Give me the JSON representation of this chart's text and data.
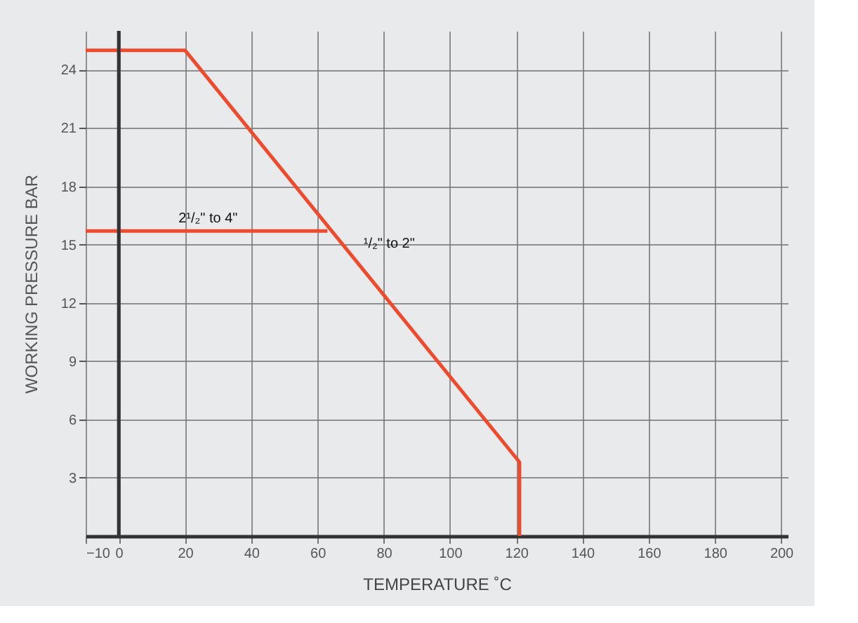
{
  "chart_data": {
    "type": "line",
    "xlabel": "TEMPERATURE ˚C",
    "ylabel": "WORKING PRESSURE BAR",
    "series": [
      {
        "name": "¹/₂\" to 2\"",
        "x": [
          -10,
          20,
          121,
          121
        ],
        "values": [
          25,
          25,
          3.8,
          0
        ],
        "color": "#ef4a2c"
      },
      {
        "name": "2¹/₂\" to 4\"",
        "x": [
          -10,
          63
        ],
        "values": [
          15.7,
          15.7
        ],
        "color": "#ef4a2c"
      }
    ],
    "xlim": [
      -10,
      202
    ],
    "xticks": [
      -10,
      0,
      20,
      40,
      60,
      80,
      100,
      120,
      140,
      160,
      180,
      200
    ],
    "ylim": [
      0,
      26
    ],
    "yticks": [
      3,
      6,
      9,
      12,
      15,
      18,
      21,
      24
    ],
    "grid": true,
    "marker": "none",
    "line_style": "solid",
    "legend": false
  }
}
